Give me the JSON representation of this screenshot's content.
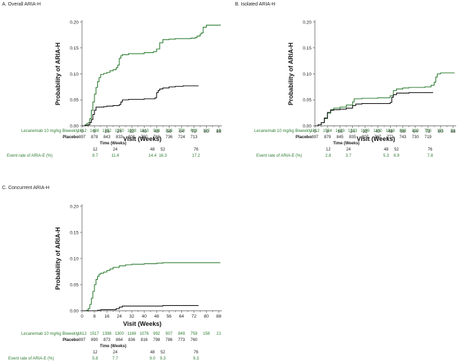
{
  "figure": {
    "x_axis_label": "Visit (Weeks)",
    "y_axis_label": "Probability of ARIA-H",
    "leqembi_row_label": "Lecanemab 10 mg/kg Biweekly",
    "placebo_row_label": "Placebo",
    "time_label": "Time (Weeks)",
    "event_rate_label": "Event rate of ARIA-E (%)",
    "leqembi_color": "#2e7d32",
    "placebo_color": "#111111"
  },
  "chart_data": [
    {
      "type": "line",
      "title": "A. Overall ARIA-H",
      "xlabel": "Visit (Weeks)",
      "ylabel": "Probability of ARIA-H",
      "xlim": [
        0,
        90
      ],
      "ylim": [
        0,
        0.2
      ],
      "xticks": [
        "0",
        "8",
        "16",
        "24",
        "32",
        "40",
        "48",
        "56",
        "64",
        "72",
        "80",
        "88"
      ],
      "yticks": [
        "0.00",
        "0.05",
        "0.10",
        "0.15",
        "0.20"
      ],
      "series": [
        {
          "name": "Lecanemab 10 mg/kg Biweekly",
          "x": [
            0,
            2,
            3,
            4,
            5,
            6,
            7,
            8,
            9,
            10,
            11,
            12,
            14,
            16,
            18,
            20,
            22,
            23,
            24,
            25,
            26,
            30,
            40,
            46,
            48,
            50,
            52,
            56,
            60,
            70,
            73,
            74,
            76,
            77,
            78,
            80,
            89
          ],
          "y": [
            0,
            0.002,
            0.004,
            0.006,
            0.014,
            0.03,
            0.046,
            0.061,
            0.074,
            0.085,
            0.093,
            0.099,
            0.101,
            0.103,
            0.106,
            0.108,
            0.112,
            0.117,
            0.13,
            0.135,
            0.137,
            0.139,
            0.141,
            0.143,
            0.148,
            0.16,
            0.166,
            0.167,
            0.168,
            0.169,
            0.17,
            0.173,
            0.177,
            0.179,
            0.19,
            0.194,
            0.195
          ]
        },
        {
          "name": "Placebo",
          "x": [
            0,
            2,
            4,
            5,
            6,
            7,
            8,
            9,
            10,
            12,
            14,
            16,
            20,
            24,
            25,
            26,
            30,
            40,
            47,
            48,
            49,
            50,
            52,
            56,
            60,
            65,
            75
          ],
          "y": [
            0,
            0.001,
            0.002,
            0.006,
            0.012,
            0.022,
            0.03,
            0.036,
            0.036,
            0.036,
            0.037,
            0.038,
            0.039,
            0.041,
            0.046,
            0.05,
            0.051,
            0.052,
            0.054,
            0.064,
            0.068,
            0.071,
            0.073,
            0.075,
            0.076,
            0.077,
            0.077
          ]
        }
      ],
      "at_risk": {
        "lecanemab": [
          "1612",
          "1498",
          "1352",
          "1250",
          "1098",
          "1013",
          "936",
          "829",
          "778",
          "693",
          "132",
          "16"
        ],
        "placebo": [
          "897",
          "878",
          "843",
          "833",
          "801",
          "782",
          "766",
          "736",
          "724",
          "713"
        ]
      },
      "event_rate": {
        "weeks": [
          "12",
          "24",
          "48",
          "52",
          "76"
        ],
        "rates": [
          "8.7",
          "11.4",
          "14.4",
          "16.3",
          "17.2"
        ]
      }
    },
    {
      "type": "line",
      "title": "B. Isolated ARIA-H",
      "xlabel": "Visit (Weeks)",
      "ylabel": "Probability of ARIA-H",
      "xlim": [
        0,
        90
      ],
      "ylim": [
        0,
        0.2
      ],
      "xticks": [
        "0",
        "8",
        "16",
        "24",
        "32",
        "40",
        "48",
        "56",
        "64",
        "72",
        "80",
        "88"
      ],
      "yticks": [
        "0.00",
        "0.05",
        "0.10",
        "0.15",
        "0.20"
      ],
      "series": [
        {
          "name": "Lecanemab 10 mg/kg Biweekly",
          "x": [
            0,
            2,
            4,
            6,
            8,
            10,
            12,
            16,
            20,
            24,
            25,
            30,
            40,
            48,
            50,
            52,
            56,
            60,
            70,
            74,
            76,
            77,
            78,
            80,
            89
          ],
          "y": [
            0,
            0.002,
            0.006,
            0.014,
            0.024,
            0.031,
            0.034,
            0.036,
            0.04,
            0.046,
            0.052,
            0.053,
            0.054,
            0.058,
            0.068,
            0.071,
            0.073,
            0.074,
            0.075,
            0.078,
            0.084,
            0.094,
            0.1,
            0.102,
            0.102
          ]
        },
        {
          "name": "Placebo",
          "x": [
            0,
            2,
            4,
            6,
            8,
            10,
            12,
            16,
            20,
            24,
            26,
            30,
            40,
            48,
            49,
            50,
            52,
            60,
            75
          ],
          "y": [
            0,
            0.002,
            0.006,
            0.015,
            0.026,
            0.03,
            0.031,
            0.032,
            0.034,
            0.039,
            0.042,
            0.043,
            0.043,
            0.045,
            0.055,
            0.06,
            0.063,
            0.064,
            0.065
          ]
        }
      ],
      "at_risk": {
        "lecanemab": [
          "1612",
          "1534",
          "1429",
          "1333",
          "1189",
          "1100",
          "1018",
          "898",
          "839",
          "750",
          "151",
          "21"
        ],
        "placebo": [
          "897",
          "879",
          "845",
          "835",
          "807",
          "787",
          "771",
          "743",
          "730",
          "719"
        ]
      },
      "event_rate": {
        "weeks": [
          "12",
          "24",
          "48",
          "52",
          "76"
        ],
        "rates": [
          "2.8",
          "3.7",
          "5.3",
          "6.9",
          "7.8"
        ]
      }
    },
    {
      "type": "line",
      "title": "C. Concurrent ARIA-H",
      "xlabel": "Visit (Weeks)",
      "ylabel": "Probability of ARIA-H",
      "xlim": [
        0,
        90
      ],
      "ylim": [
        0,
        0.2
      ],
      "xticks": [
        "0",
        "8",
        "16",
        "24",
        "32",
        "40",
        "48",
        "56",
        "64",
        "72",
        "80",
        "88"
      ],
      "yticks": [
        "0.00",
        "0.05",
        "0.10",
        "0.15",
        "0.20"
      ],
      "series": [
        {
          "name": "Lecanemab 10 mg/kg Biweekly",
          "x": [
            0,
            3,
            4,
            5,
            6,
            7,
            8,
            9,
            10,
            11,
            12,
            14,
            16,
            18,
            20,
            24,
            28,
            32,
            40,
            48,
            52,
            56,
            89
          ],
          "y": [
            0,
            0.001,
            0.004,
            0.012,
            0.024,
            0.037,
            0.05,
            0.06,
            0.066,
            0.07,
            0.072,
            0.074,
            0.077,
            0.08,
            0.083,
            0.086,
            0.088,
            0.089,
            0.09,
            0.091,
            0.092,
            0.092,
            0.092
          ]
        },
        {
          "name": "Placebo",
          "x": [
            0,
            10,
            12,
            20,
            22,
            24,
            26,
            30,
            40,
            50,
            52,
            60,
            75
          ],
          "y": [
            0,
            0.001,
            0.002,
            0.002,
            0.004,
            0.007,
            0.009,
            0.009,
            0.009,
            0.009,
            0.01,
            0.01,
            0.01
          ]
        }
      ],
      "at_risk": {
        "lecanemab": [
          "1612",
          "1517",
          "1398",
          "1300",
          "1166",
          "1076",
          "992",
          "907",
          "849",
          "759",
          "158",
          "21"
        ],
        "placebo": [
          "897",
          "890",
          "873",
          "864",
          "836",
          "816",
          "798",
          "786",
          "773",
          "760"
        ]
      },
      "event_rate": {
        "weeks": [
          "12",
          "24",
          "48",
          "52",
          "76"
        ],
        "rates": [
          "5.8",
          "7.7",
          "9.0",
          "9.3",
          "9.3"
        ]
      }
    }
  ]
}
